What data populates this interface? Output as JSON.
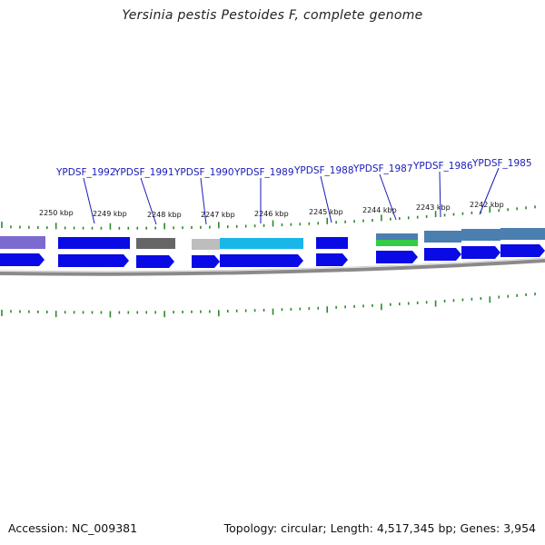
{
  "title": "Yersinia pestis Pestoides F, complete genome",
  "footer": {
    "accession": "Accession: NC_009381",
    "topology": "Topology: circular; Length: 4,517,345 bp; Genes: 3,954"
  },
  "gene_labels": [
    "YPDSF_1992",
    "YPDSF_1991",
    "YPDSF_1990",
    "YPDSF_1989",
    "YPDSF_1988",
    "YPDSF_1987",
    "YPDSF_1986",
    "YPDSF_1985"
  ],
  "ticks": [
    "2250 kbp",
    "2249 kbp",
    "2248 kbp",
    "2247 kbp",
    "2246 kbp",
    "2245 kbp",
    "2244 kbp",
    "2243 kbp",
    "2242 kbp"
  ],
  "colors": {
    "gene_label": "#1a1ab8",
    "cds": "#0a0ae6",
    "cyan_feature": "#19b6e8",
    "steel_feature": "#4a7fb0",
    "green_feature": "#33cc44",
    "purple_feature": "#7b6ad0",
    "gray_dark": "#666666",
    "gray_light": "#bdbdbd",
    "tick": "#2a8a2a",
    "backbone": "#8a8a8a"
  }
}
